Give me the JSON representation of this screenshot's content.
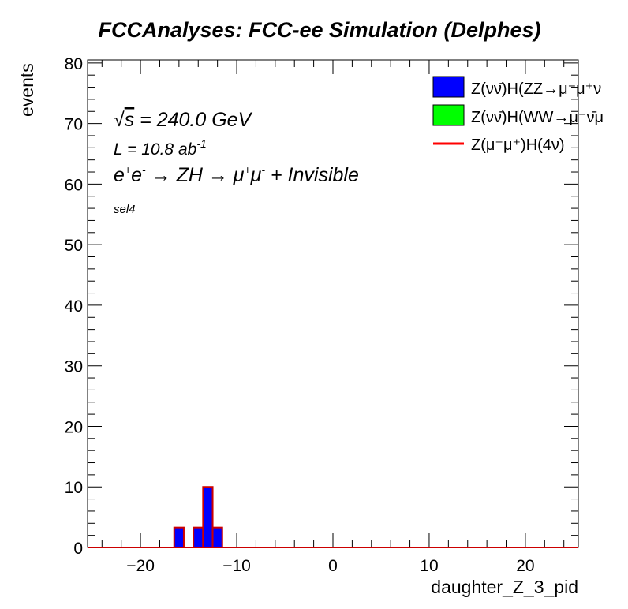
{
  "title": "FCCAnalyses: FCC-ee Simulation (Delphes)",
  "annotations": {
    "sqrt_s_symbol": "√",
    "sqrt_s_var": "s",
    "sqrt_s_value": " = 240.0 GeV",
    "lumi_prefix": "L = 10.8 ab",
    "lumi_exp": "-1",
    "process_e1": "e",
    "process_e1_sup": "+",
    "process_e2": "e",
    "process_e2_sup": "-",
    "process_arrow1": " → ZH → ",
    "process_mu1": "μ",
    "process_mu1_sup": "+",
    "process_mu2": "μ",
    "process_mu2_sup": "-",
    "process_tail": " + Invisible",
    "selection": "sel4"
  },
  "legend": [
    {
      "label": "Z(νν̄)H(ZZ→μ⁻μ⁺ν",
      "style": "fill",
      "color": "#0000ff"
    },
    {
      "label": "Z(νν̄)H(WW→μ⁻ν̄μ",
      "style": "fill",
      "color": "#00ff00"
    },
    {
      "label": "Z(μ⁻μ⁺)H(4ν)",
      "style": "line",
      "color": "#ff0000"
    }
  ],
  "chart_data": {
    "type": "bar",
    "title": "FCCAnalyses: FCC-ee Simulation (Delphes)",
    "xlabel": "daughter_Z_3_pid",
    "ylabel": "events",
    "xlim": [
      -25.5,
      25.5
    ],
    "ylim": [
      0,
      80.5
    ],
    "xticks": [
      -20,
      -10,
      0,
      10,
      20
    ],
    "xtick_labels": [
      "−20",
      "−10",
      "0",
      "10",
      "20"
    ],
    "yticks": [
      0,
      10,
      20,
      30,
      40,
      50,
      60,
      70,
      80
    ],
    "ytick_labels": [
      "0",
      "10",
      "20",
      "30",
      "40",
      "50",
      "60",
      "70",
      "80"
    ],
    "bin_width": 1,
    "series": [
      {
        "name": "Z(νν̄)H(ZZ→μ⁻μ⁺ν",
        "color": "#0000ff",
        "bins": [
          {
            "x": -16,
            "value": 3.3
          },
          {
            "x": -14,
            "value": 3.3
          },
          {
            "x": -13,
            "value": 10.0
          },
          {
            "x": -12,
            "value": 3.3
          }
        ]
      },
      {
        "name": "Z(νν̄)H(WW→μ⁻ν̄μ",
        "color": "#00ff00",
        "bins": []
      },
      {
        "name": "Z(μ⁻μ⁺)H(4ν)",
        "color": "#ff0000",
        "bins": []
      }
    ],
    "grid": false,
    "legend_position": "top-right"
  }
}
